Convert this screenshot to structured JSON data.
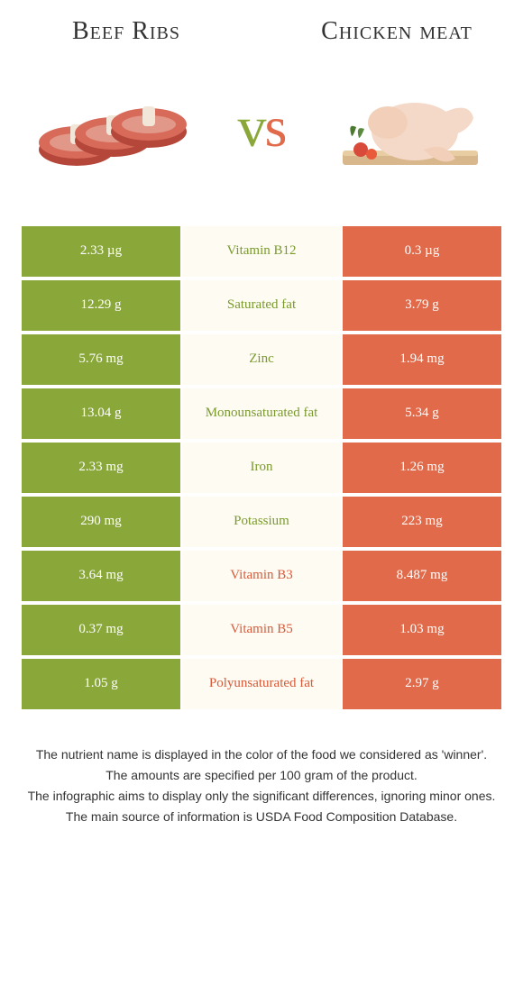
{
  "header": {
    "left_title": "Beef Ribs",
    "right_title": "Chicken meat",
    "vs_left_char": "v",
    "vs_right_char": "s"
  },
  "colors": {
    "left": "#8aa83a",
    "right": "#e06a4a",
    "mid_bg": "#fefbf2",
    "left_text_dark": "#7a9a2e",
    "right_text_dark": "#d85a3a"
  },
  "rows": [
    {
      "left": "2.33 µg",
      "label": "Vitamin B12",
      "right": "0.3 µg",
      "winner": "left"
    },
    {
      "left": "12.29 g",
      "label": "Saturated fat",
      "right": "3.79 g",
      "winner": "left"
    },
    {
      "left": "5.76 mg",
      "label": "Zinc",
      "right": "1.94 mg",
      "winner": "left"
    },
    {
      "left": "13.04 g",
      "label": "Monounsaturated fat",
      "right": "5.34 g",
      "winner": "left"
    },
    {
      "left": "2.33 mg",
      "label": "Iron",
      "right": "1.26 mg",
      "winner": "left"
    },
    {
      "left": "290 mg",
      "label": "Potassium",
      "right": "223 mg",
      "winner": "left"
    },
    {
      "left": "3.64 mg",
      "label": "Vitamin B3",
      "right": "8.487 mg",
      "winner": "right"
    },
    {
      "left": "0.37 mg",
      "label": "Vitamin B5",
      "right": "1.03 mg",
      "winner": "right"
    },
    {
      "left": "1.05 g",
      "label": "Polyunsaturated fat",
      "right": "2.97 g",
      "winner": "right"
    }
  ],
  "notes": [
    "The nutrient name is displayed in the color of the food we considered as 'winner'.",
    "The amounts are specified per 100 gram of the product.",
    "The infographic aims to display only the significant differences, ignoring minor ones.",
    "The main source of information is USDA Food Composition Database."
  ]
}
